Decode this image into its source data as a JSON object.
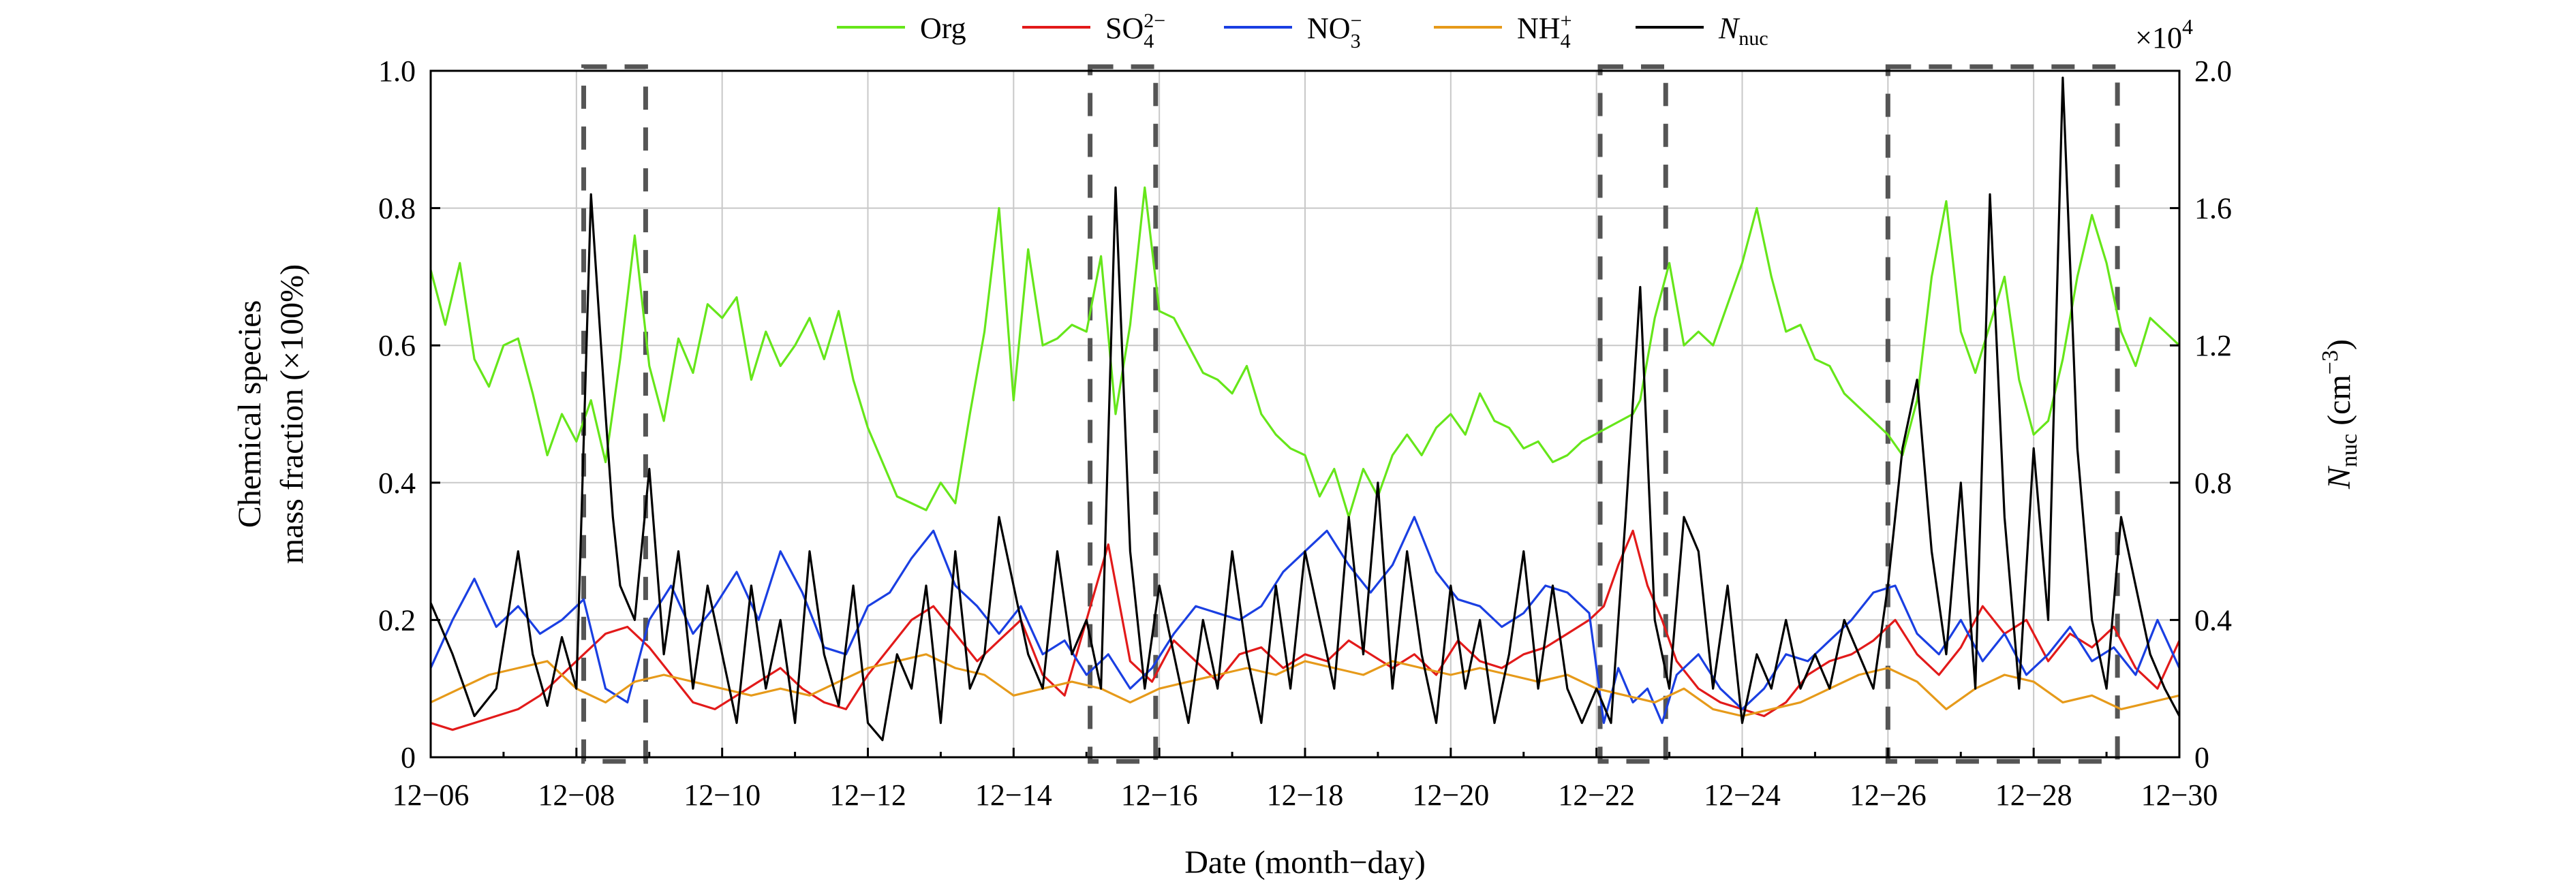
{
  "chart_data": {
    "type": "line",
    "xlabel": "Date (month−day)",
    "ylabel_left_line1": "Chemical species",
    "ylabel_left_line2": "mass fraction (×100%)",
    "ylabel_right_main": "N",
    "ylabel_right_sub": "nuc",
    "ylabel_right_unit": " (cm",
    "ylabel_right_unit_sup": "−3",
    "ylabel_right_close": ")",
    "right_axis_multiplier_prefix": "×10",
    "right_axis_multiplier_exp": "4",
    "x_start_day": 6,
    "x_end_day": 30,
    "x_ticks": [
      {
        "day": 6,
        "label": "12−06"
      },
      {
        "day": 8,
        "label": "12−08"
      },
      {
        "day": 10,
        "label": "12−10"
      },
      {
        "day": 12,
        "label": "12−12"
      },
      {
        "day": 14,
        "label": "12−14"
      },
      {
        "day": 16,
        "label": "12−16"
      },
      {
        "day": 18,
        "label": "12−18"
      },
      {
        "day": 20,
        "label": "12−20"
      },
      {
        "day": 22,
        "label": "12−22"
      },
      {
        "day": 24,
        "label": "12−24"
      },
      {
        "day": 26,
        "label": "12−26"
      },
      {
        "day": 28,
        "label": "12−28"
      },
      {
        "day": 30,
        "label": "12−30"
      }
    ],
    "ylim_left": [
      0,
      1.0
    ],
    "y_ticks_left": [
      {
        "v": 0,
        "label": "0"
      },
      {
        "v": 0.2,
        "label": "0.2"
      },
      {
        "v": 0.4,
        "label": "0.4"
      },
      {
        "v": 0.6,
        "label": "0.6"
      },
      {
        "v": 0.8,
        "label": "0.8"
      },
      {
        "v": 1.0,
        "label": "1.0"
      }
    ],
    "ylim_right": [
      0,
      2.0
    ],
    "y_ticks_right": [
      {
        "v": 0,
        "label": "0"
      },
      {
        "v": 0.4,
        "label": "0.4"
      },
      {
        "v": 0.8,
        "label": "0.8"
      },
      {
        "v": 1.2,
        "label": "1.2"
      },
      {
        "v": 1.6,
        "label": "1.6"
      },
      {
        "v": 2.0,
        "label": "2.0"
      }
    ],
    "grid": true,
    "nucleation_events": [
      {
        "start": 8.1,
        "end": 8.95
      },
      {
        "start": 15.05,
        "end": 15.95
      },
      {
        "start": 22.05,
        "end": 22.95
      },
      {
        "start": 26.0,
        "end": 29.15
      }
    ],
    "legend_placement": "top-center",
    "series": [
      {
        "name": "Org",
        "legend_main": "Org",
        "legend_sub": "",
        "legend_sup": "",
        "legend_italic": false,
        "color": "#66e61a",
        "axis": "left",
        "x": [
          6.0,
          6.2,
          6.4,
          6.6,
          6.8,
          7.0,
          7.2,
          7.4,
          7.6,
          7.8,
          8.0,
          8.2,
          8.4,
          8.6,
          8.8,
          9.0,
          9.2,
          9.4,
          9.6,
          9.8,
          10.0,
          10.2,
          10.4,
          10.6,
          10.8,
          11.0,
          11.2,
          11.4,
          11.6,
          11.8,
          12.0,
          12.2,
          12.4,
          12.6,
          12.8,
          13.0,
          13.2,
          13.4,
          13.6,
          13.8,
          14.0,
          14.2,
          14.4,
          14.6,
          14.8,
          15.0,
          15.2,
          15.4,
          15.6,
          15.8,
          16.0,
          16.2,
          16.4,
          16.6,
          16.8,
          17.0,
          17.2,
          17.4,
          17.6,
          17.8,
          18.0,
          18.2,
          18.4,
          18.6,
          18.8,
          19.0,
          19.2,
          19.4,
          19.6,
          19.8,
          20.0,
          20.2,
          20.4,
          20.6,
          20.8,
          21.0,
          21.2,
          21.4,
          21.6,
          21.8,
          22.5,
          22.6,
          22.8,
          23.0,
          23.2,
          23.4,
          23.6,
          23.8,
          24.0,
          24.2,
          24.4,
          24.6,
          24.8,
          25.0,
          25.2,
          25.4,
          25.6,
          25.8,
          26.0,
          26.2,
          26.4,
          26.6,
          26.8,
          27.0,
          27.2,
          27.4,
          27.6,
          27.8,
          28.0,
          28.2,
          28.4,
          28.6,
          28.8,
          29.0,
          29.2,
          29.4,
          29.6,
          29.8,
          30.0
        ],
        "values": [
          0.71,
          0.63,
          0.72,
          0.58,
          0.54,
          0.6,
          0.61,
          0.53,
          0.44,
          0.5,
          0.46,
          0.52,
          0.43,
          0.58,
          0.76,
          0.57,
          0.49,
          0.61,
          0.56,
          0.66,
          0.64,
          0.67,
          0.55,
          0.62,
          0.57,
          0.6,
          0.64,
          0.58,
          0.65,
          0.55,
          0.48,
          0.43,
          0.38,
          0.37,
          0.36,
          0.4,
          0.37,
          0.5,
          0.62,
          0.8,
          0.52,
          0.74,
          0.6,
          0.61,
          0.63,
          0.62,
          0.73,
          0.5,
          0.63,
          0.83,
          0.65,
          0.64,
          0.6,
          0.56,
          0.55,
          0.53,
          0.57,
          0.5,
          0.47,
          0.45,
          0.44,
          0.38,
          0.42,
          0.35,
          0.42,
          0.38,
          0.44,
          0.47,
          0.44,
          0.48,
          0.5,
          0.47,
          0.53,
          0.49,
          0.48,
          0.45,
          0.46,
          0.43,
          0.44,
          0.46,
          0.5,
          0.52,
          0.64,
          0.72,
          0.6,
          0.62,
          0.6,
          0.66,
          0.72,
          0.8,
          0.7,
          0.62,
          0.63,
          0.58,
          0.57,
          0.53,
          0.51,
          0.49,
          0.47,
          0.44,
          0.52,
          0.7,
          0.81,
          0.62,
          0.56,
          0.63,
          0.7,
          0.55,
          0.47,
          0.49,
          0.58,
          0.7,
          0.79,
          0.72,
          0.62,
          0.57,
          0.64,
          0.62,
          0.6
        ]
      },
      {
        "name": "SO4",
        "legend_main": "SO",
        "legend_sub": "4",
        "legend_sup": "2−",
        "legend_italic": false,
        "color": "#e21a1a",
        "axis": "left",
        "x": [
          6.0,
          6.3,
          6.6,
          6.9,
          7.2,
          7.5,
          7.8,
          8.1,
          8.4,
          8.7,
          9.0,
          9.3,
          9.6,
          9.9,
          10.2,
          10.5,
          10.8,
          11.1,
          11.4,
          11.7,
          12.0,
          12.3,
          12.6,
          12.9,
          13.2,
          13.5,
          13.8,
          14.1,
          14.4,
          14.7,
          15.0,
          15.3,
          15.6,
          15.9,
          16.2,
          16.5,
          16.8,
          17.1,
          17.4,
          17.7,
          18.0,
          18.3,
          18.6,
          18.9,
          19.2,
          19.5,
          19.8,
          20.1,
          20.4,
          20.7,
          21.0,
          21.3,
          21.6,
          21.9,
          22.1,
          22.3,
          22.5,
          22.7,
          22.9,
          23.1,
          23.4,
          23.7,
          24.0,
          24.3,
          24.6,
          24.9,
          25.2,
          25.5,
          25.8,
          26.1,
          26.4,
          26.7,
          27.0,
          27.3,
          27.6,
          27.9,
          28.2,
          28.5,
          28.8,
          29.1,
          29.4,
          29.7,
          30.0
        ],
        "values": [
          0.05,
          0.04,
          0.05,
          0.06,
          0.07,
          0.09,
          0.12,
          0.15,
          0.18,
          0.19,
          0.16,
          0.12,
          0.08,
          0.07,
          0.09,
          0.11,
          0.13,
          0.1,
          0.08,
          0.07,
          0.12,
          0.16,
          0.2,
          0.22,
          0.18,
          0.14,
          0.17,
          0.2,
          0.12,
          0.09,
          0.2,
          0.31,
          0.14,
          0.11,
          0.17,
          0.14,
          0.11,
          0.15,
          0.16,
          0.13,
          0.15,
          0.14,
          0.17,
          0.15,
          0.13,
          0.15,
          0.12,
          0.17,
          0.14,
          0.13,
          0.15,
          0.16,
          0.18,
          0.2,
          0.22,
          0.28,
          0.33,
          0.25,
          0.2,
          0.14,
          0.1,
          0.08,
          0.07,
          0.06,
          0.08,
          0.12,
          0.14,
          0.15,
          0.17,
          0.2,
          0.15,
          0.12,
          0.16,
          0.22,
          0.18,
          0.2,
          0.14,
          0.18,
          0.16,
          0.19,
          0.13,
          0.1,
          0.17
        ]
      },
      {
        "name": "NO3",
        "legend_main": "NO",
        "legend_sub": "3",
        "legend_sup": "−",
        "legend_italic": false,
        "color": "#1a3fe2",
        "axis": "left",
        "x": [
          6.0,
          6.3,
          6.6,
          6.9,
          7.2,
          7.5,
          7.8,
          8.1,
          8.4,
          8.7,
          9.0,
          9.3,
          9.6,
          9.9,
          10.2,
          10.5,
          10.8,
          11.1,
          11.4,
          11.7,
          12.0,
          12.3,
          12.6,
          12.9,
          13.2,
          13.5,
          13.8,
          14.1,
          14.4,
          14.7,
          15.0,
          15.3,
          15.6,
          15.9,
          16.2,
          16.5,
          16.8,
          17.1,
          17.4,
          17.7,
          18.0,
          18.3,
          18.6,
          18.9,
          19.2,
          19.5,
          19.8,
          20.1,
          20.4,
          20.7,
          21.0,
          21.3,
          21.6,
          21.9,
          22.1,
          22.3,
          22.5,
          22.7,
          22.9,
          23.1,
          23.4,
          23.7,
          24.0,
          24.3,
          24.6,
          24.9,
          25.2,
          25.5,
          25.8,
          26.1,
          26.4,
          26.7,
          27.0,
          27.3,
          27.6,
          27.9,
          28.2,
          28.5,
          28.8,
          29.1,
          29.4,
          29.7,
          30.0
        ],
        "values": [
          0.13,
          0.2,
          0.26,
          0.19,
          0.22,
          0.18,
          0.2,
          0.23,
          0.1,
          0.08,
          0.2,
          0.25,
          0.18,
          0.22,
          0.27,
          0.2,
          0.3,
          0.24,
          0.16,
          0.15,
          0.22,
          0.24,
          0.29,
          0.33,
          0.25,
          0.22,
          0.18,
          0.22,
          0.15,
          0.17,
          0.12,
          0.15,
          0.1,
          0.13,
          0.18,
          0.22,
          0.21,
          0.2,
          0.22,
          0.27,
          0.3,
          0.33,
          0.28,
          0.24,
          0.28,
          0.35,
          0.27,
          0.23,
          0.22,
          0.19,
          0.21,
          0.25,
          0.24,
          0.21,
          0.05,
          0.13,
          0.08,
          0.1,
          0.05,
          0.12,
          0.15,
          0.1,
          0.07,
          0.1,
          0.15,
          0.14,
          0.17,
          0.2,
          0.24,
          0.25,
          0.18,
          0.15,
          0.2,
          0.14,
          0.18,
          0.12,
          0.15,
          0.19,
          0.14,
          0.16,
          0.12,
          0.2,
          0.13
        ]
      },
      {
        "name": "NH4",
        "legend_main": "NH",
        "legend_sub": "4",
        "legend_sup": "+",
        "legend_italic": false,
        "color": "#e69a1a",
        "axis": "left",
        "x": [
          6.0,
          6.4,
          6.8,
          7.2,
          7.6,
          8.0,
          8.4,
          8.8,
          9.2,
          9.6,
          10.0,
          10.4,
          10.8,
          11.2,
          11.6,
          12.0,
          12.4,
          12.8,
          13.2,
          13.6,
          14.0,
          14.4,
          14.8,
          15.2,
          15.6,
          16.0,
          16.4,
          16.8,
          17.2,
          17.6,
          18.0,
          18.4,
          18.8,
          19.2,
          19.6,
          20.0,
          20.4,
          20.8,
          21.2,
          21.6,
          22.0,
          22.4,
          22.8,
          23.2,
          23.6,
          24.0,
          24.4,
          24.8,
          25.2,
          25.6,
          26.0,
          26.4,
          26.8,
          27.2,
          27.6,
          28.0,
          28.4,
          28.8,
          29.2,
          29.6,
          30.0
        ],
        "values": [
          0.08,
          0.1,
          0.12,
          0.13,
          0.14,
          0.1,
          0.08,
          0.11,
          0.12,
          0.11,
          0.1,
          0.09,
          0.1,
          0.09,
          0.11,
          0.13,
          0.14,
          0.15,
          0.13,
          0.12,
          0.09,
          0.1,
          0.11,
          0.1,
          0.08,
          0.1,
          0.11,
          0.12,
          0.13,
          0.12,
          0.14,
          0.13,
          0.12,
          0.14,
          0.13,
          0.12,
          0.13,
          0.12,
          0.11,
          0.12,
          0.1,
          0.09,
          0.08,
          0.1,
          0.07,
          0.06,
          0.07,
          0.08,
          0.1,
          0.12,
          0.13,
          0.11,
          0.07,
          0.1,
          0.12,
          0.11,
          0.08,
          0.09,
          0.07,
          0.08,
          0.09
        ]
      },
      {
        "name": "Nnuc",
        "legend_main": "N",
        "legend_sub": "nuc",
        "legend_sup": "",
        "legend_italic": true,
        "color": "#000000",
        "axis": "right",
        "x": [
          6.0,
          6.3,
          6.6,
          6.9,
          7.2,
          7.4,
          7.6,
          7.8,
          8.0,
          8.2,
          8.4,
          8.5,
          8.6,
          8.8,
          9.0,
          9.2,
          9.4,
          9.6,
          9.8,
          10.0,
          10.2,
          10.4,
          10.6,
          10.8,
          11.0,
          11.2,
          11.4,
          11.6,
          11.8,
          12.0,
          12.2,
          12.4,
          12.6,
          12.8,
          13.0,
          13.2,
          13.4,
          13.6,
          13.8,
          14.0,
          14.2,
          14.4,
          14.6,
          14.8,
          15.0,
          15.2,
          15.4,
          15.6,
          15.8,
          16.0,
          16.2,
          16.4,
          16.6,
          16.8,
          17.0,
          17.2,
          17.4,
          17.6,
          17.8,
          18.0,
          18.2,
          18.4,
          18.6,
          18.8,
          19.0,
          19.2,
          19.4,
          19.6,
          19.8,
          20.0,
          20.2,
          20.4,
          20.6,
          20.8,
          21.0,
          21.2,
          21.4,
          21.6,
          21.8,
          22.0,
          22.2,
          22.4,
          22.6,
          22.8,
          23.0,
          23.2,
          23.4,
          23.6,
          23.8,
          24.0,
          24.2,
          24.4,
          24.6,
          24.8,
          25.0,
          25.2,
          25.4,
          25.6,
          25.8,
          26.0,
          26.2,
          26.4,
          26.6,
          26.8,
          27.0,
          27.2,
          27.4,
          27.6,
          27.8,
          28.0,
          28.2,
          28.4,
          28.6,
          28.8,
          29.0,
          29.2,
          29.4,
          29.6,
          29.8,
          30.0
        ],
        "values": [
          0.45,
          0.3,
          0.12,
          0.2,
          0.6,
          0.3,
          0.15,
          0.35,
          0.2,
          1.64,
          1.0,
          0.7,
          0.5,
          0.4,
          0.84,
          0.3,
          0.6,
          0.2,
          0.5,
          0.3,
          0.1,
          0.5,
          0.2,
          0.4,
          0.1,
          0.6,
          0.3,
          0.15,
          0.5,
          0.1,
          0.05,
          0.3,
          0.2,
          0.5,
          0.1,
          0.6,
          0.2,
          0.3,
          0.7,
          0.5,
          0.3,
          0.2,
          0.6,
          0.3,
          0.4,
          0.2,
          1.66,
          0.6,
          0.2,
          0.5,
          0.3,
          0.1,
          0.4,
          0.2,
          0.6,
          0.3,
          0.1,
          0.5,
          0.2,
          0.6,
          0.4,
          0.2,
          0.7,
          0.3,
          0.8,
          0.2,
          0.6,
          0.3,
          0.1,
          0.5,
          0.2,
          0.4,
          0.1,
          0.3,
          0.6,
          0.2,
          0.5,
          0.2,
          0.1,
          0.2,
          0.1,
          0.7,
          1.37,
          0.4,
          0.2,
          0.7,
          0.6,
          0.2,
          0.5,
          0.1,
          0.3,
          0.2,
          0.4,
          0.2,
          0.3,
          0.2,
          0.4,
          0.3,
          0.2,
          0.5,
          0.9,
          1.1,
          0.6,
          0.3,
          0.8,
          0.2,
          1.64,
          0.7,
          0.2,
          0.9,
          0.4,
          1.98,
          0.9,
          0.4,
          0.2,
          0.7,
          0.5,
          0.3,
          0.2,
          0.12
        ]
      }
    ]
  }
}
